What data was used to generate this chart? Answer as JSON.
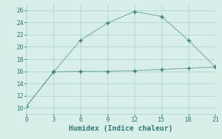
{
  "line1_x": [
    0,
    3,
    6,
    9,
    12,
    15,
    18,
    21
  ],
  "line1_y": [
    10.3,
    15.9,
    21.1,
    23.9,
    25.8,
    25.0,
    21.1,
    16.7
  ],
  "line2_x": [
    0,
    3,
    6,
    9,
    12,
    15,
    18,
    21
  ],
  "line2_y": [
    10.3,
    15.9,
    16.0,
    16.0,
    16.1,
    16.3,
    16.5,
    16.7
  ],
  "line_color": "#2d7d72",
  "bg_color": "#d8eeea",
  "grid_color": "#b2d8d2",
  "xlabel": "Humidex (Indice chaleur)",
  "xlim": [
    0,
    21
  ],
  "ylim": [
    9,
    27
  ],
  "xticks": [
    0,
    3,
    6,
    9,
    12,
    15,
    18,
    21
  ],
  "yticks": [
    10,
    12,
    14,
    16,
    18,
    20,
    22,
    24,
    26
  ],
  "xlabel_fontsize": 7.5,
  "tick_fontsize": 6.5
}
